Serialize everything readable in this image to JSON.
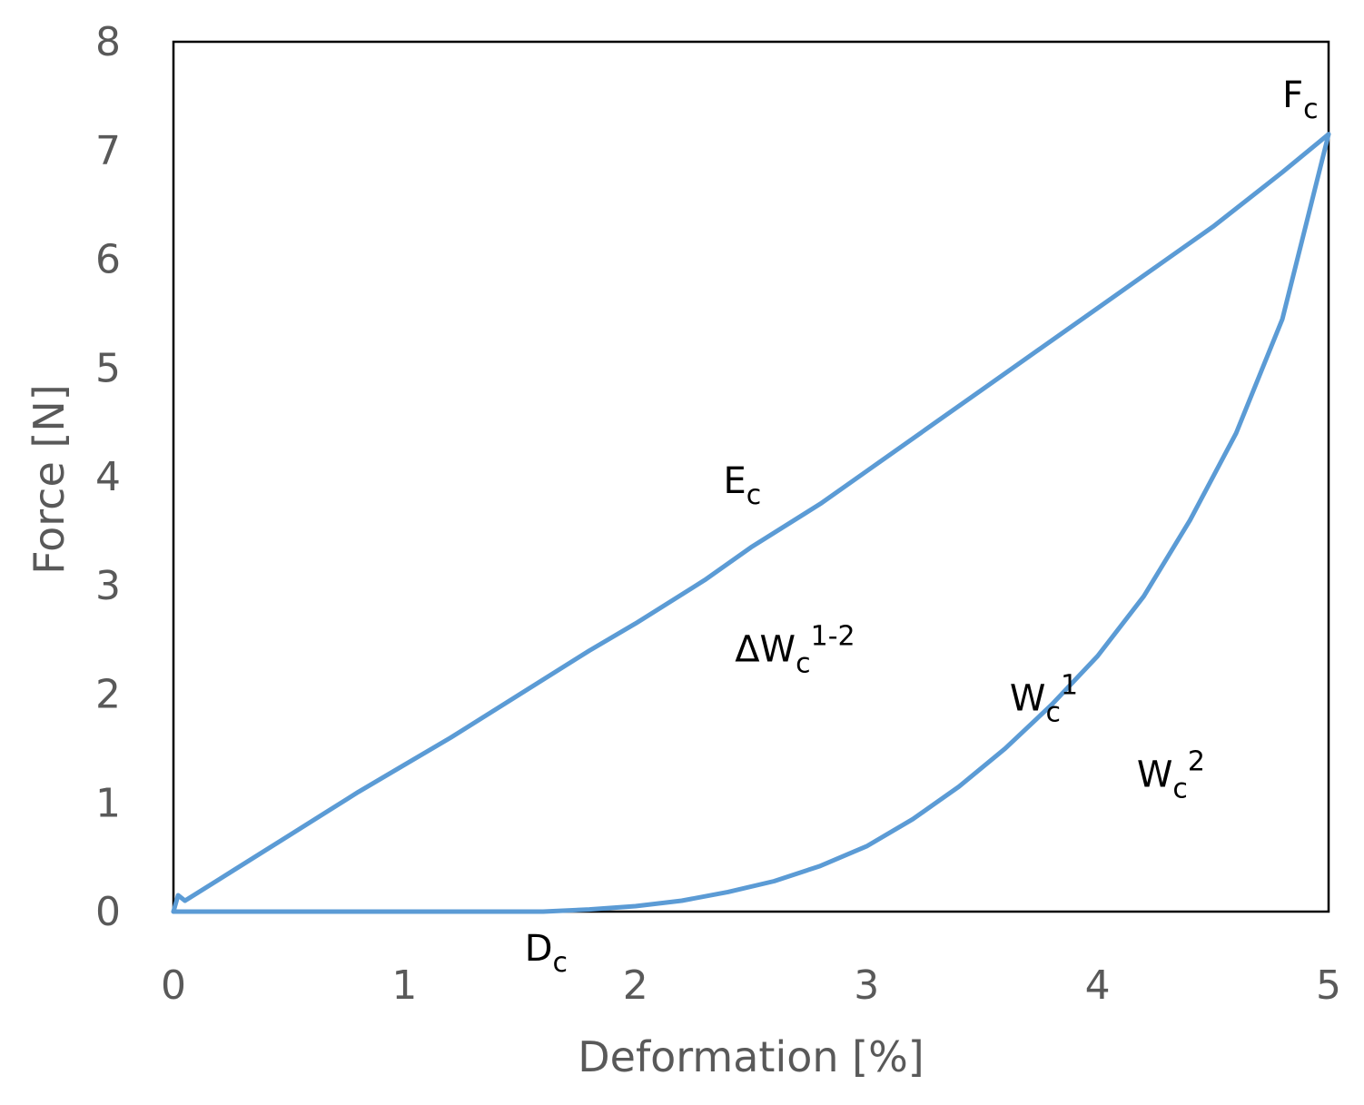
{
  "chart_data": {
    "type": "line",
    "title": "",
    "xlabel": "Deformation [%]",
    "ylabel": "Force [N]",
    "xlim": [
      0,
      5
    ],
    "ylim": [
      0,
      8
    ],
    "x_ticks": [
      "0",
      "1",
      "2",
      "3",
      "4",
      "5"
    ],
    "y_ticks": [
      "0",
      "1",
      "2",
      "3",
      "4",
      "5",
      "6",
      "7",
      "8"
    ],
    "grid": false,
    "legend": "none",
    "line_color": "#5b9bd5",
    "series": [
      {
        "x": [
          0,
          0.02,
          0.05,
          0.2,
          0.5,
          0.8,
          1.0,
          1.2,
          1.5,
          1.8,
          2.0,
          2.3,
          2.5,
          2.8,
          3.0,
          3.3,
          3.5,
          3.8,
          4.0,
          4.3,
          4.5,
          4.8,
          5.0
        ],
        "y": [
          0,
          0.15,
          0.1,
          0.3,
          0.7,
          1.1,
          1.35,
          1.6,
          2.0,
          2.4,
          2.65,
          3.05,
          3.35,
          3.75,
          4.05,
          4.5,
          4.8,
          5.25,
          5.55,
          6.0,
          6.3,
          6.8,
          7.15
        ]
      },
      {
        "x": [
          5.0,
          4.9,
          4.8,
          4.6,
          4.4,
          4.2,
          4.0,
          3.8,
          3.6,
          3.4,
          3.2,
          3.0,
          2.8,
          2.6,
          2.4,
          2.2,
          2.0,
          1.8,
          1.6,
          1.55,
          1.2,
          0.8,
          0.4,
          0.0
        ],
        "y": [
          7.15,
          6.3,
          5.45,
          4.4,
          3.6,
          2.9,
          2.35,
          1.9,
          1.5,
          1.15,
          0.85,
          0.6,
          0.42,
          0.28,
          0.18,
          0.1,
          0.05,
          0.02,
          0.0,
          0.0,
          0.0,
          0.0,
          0.0,
          0.0
        ]
      }
    ],
    "annotations": [
      {
        "main": "E",
        "sub": "c",
        "sup": "",
        "x": 2.38,
        "y": 3.85
      },
      {
        "main": "F",
        "sub": "c",
        "sup": "",
        "x": 4.8,
        "y": 7.4
      },
      {
        "main": "D",
        "sub": "c",
        "sup": "",
        "x": 1.52,
        "y": -0.45
      },
      {
        "main": "ΔW",
        "sub": "c",
        "sup": "1-2",
        "x": 2.43,
        "y": 2.3
      },
      {
        "main": "W",
        "sub": "c",
        "sup": "1",
        "x": 3.62,
        "y": 1.85
      },
      {
        "main": "W",
        "sub": "c",
        "sup": "2",
        "x": 4.17,
        "y": 1.15
      }
    ]
  }
}
